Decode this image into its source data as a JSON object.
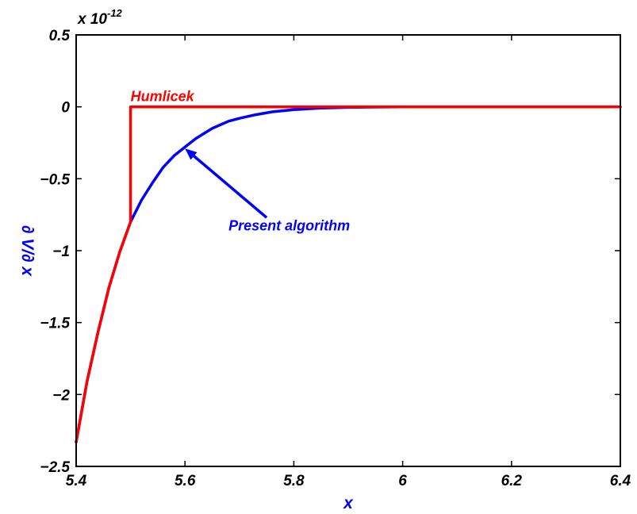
{
  "chart_data": {
    "type": "line",
    "title": "",
    "xlabel": "x",
    "ylabel": "∂ V/∂ x",
    "xlim": [
      5.4,
      6.4
    ],
    "ylim": [
      -2.5,
      0.5
    ],
    "y_exponent_label": "x 10",
    "y_exponent_power": "-12",
    "x_ticks": [
      5.4,
      5.6,
      5.8,
      6,
      6.2,
      6.4
    ],
    "x_tick_labels": [
      "5.4",
      "5.6",
      "5.8",
      "6",
      "6.2",
      "6.4"
    ],
    "y_ticks": [
      0.5,
      0,
      -0.5,
      -1,
      -1.5,
      -2,
      -2.5
    ],
    "y_tick_labels": [
      "0.5",
      "0",
      "−0.5",
      "−1",
      "−1.5",
      "−2",
      "−2.5"
    ],
    "grid": false,
    "series": [
      {
        "name": "Present algorithm",
        "color": "#0000ff",
        "x": [
          5.4,
          5.42,
          5.44,
          5.46,
          5.48,
          5.5,
          5.52,
          5.54,
          5.56,
          5.58,
          5.6,
          5.62,
          5.65,
          5.68,
          5.7,
          5.73,
          5.76,
          5.8,
          5.85,
          5.9,
          5.95,
          6.0,
          6.1,
          6.2,
          6.3,
          6.4
        ],
        "y": [
          -2.33,
          -1.91,
          -1.57,
          -1.26,
          -1.01,
          -0.8,
          -0.65,
          -0.53,
          -0.42,
          -0.34,
          -0.28,
          -0.22,
          -0.15,
          -0.1,
          -0.08,
          -0.055,
          -0.035,
          -0.02,
          -0.009,
          -0.004,
          -0.002,
          -0.001,
          0,
          0,
          0,
          0
        ]
      },
      {
        "name": "Humlicek",
        "color": "#ff0000",
        "x": [
          5.4,
          5.42,
          5.44,
          5.46,
          5.48,
          5.5,
          5.5,
          5.6,
          5.8,
          6.0,
          6.2,
          6.4
        ],
        "y": [
          -2.33,
          -1.91,
          -1.57,
          -1.26,
          -1.01,
          -0.8,
          0,
          0,
          0,
          0,
          0,
          0
        ]
      }
    ],
    "annotations": [
      {
        "text": "Humlicek",
        "color": "#ff0000",
        "x": 5.5,
        "y": 0.04
      },
      {
        "text": "Present algorithm",
        "color": "#0000ff",
        "x": 5.68,
        "y": -0.86,
        "arrow_to": [
          5.6,
          -0.29
        ],
        "arrow_from": [
          5.75,
          -0.77
        ]
      }
    ]
  }
}
